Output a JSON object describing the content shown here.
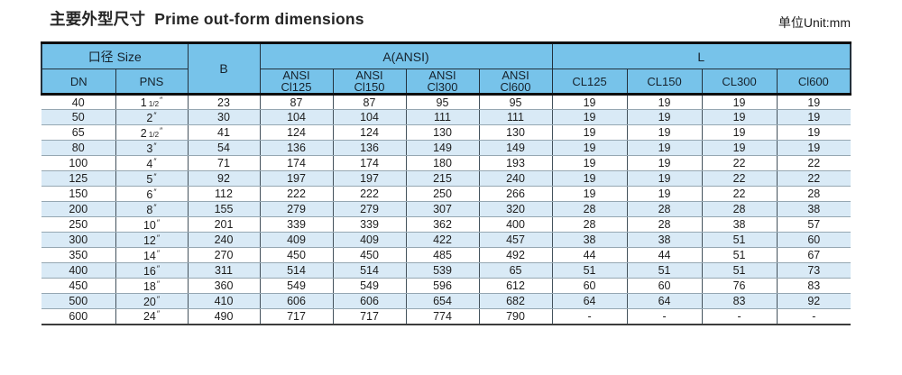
{
  "page": {
    "title_zh": "主要外型尺寸",
    "title_en": "Prime out-form dimensions",
    "unit_label": "单位Unit:mm"
  },
  "table": {
    "inch_mark": "″",
    "header": {
      "size_group": "口径 Size",
      "dn": "DN",
      "pns": "PNS",
      "b": "B",
      "a_group": "A(ANSI)",
      "a_cols": [
        {
          "line1": "ANSI",
          "line2": "Cl125"
        },
        {
          "line1": "ANSI",
          "line2": "Cl150"
        },
        {
          "line1": "ANSI",
          "line2": "Cl300"
        },
        {
          "line1": "ANSI",
          "line2": "Cl600"
        }
      ],
      "l_group": "L",
      "l_cols": [
        "CL125",
        "CL150",
        "CL300",
        "Cl600"
      ]
    },
    "rows": [
      {
        "dn": "40",
        "pns": "1 1/2",
        "b": "23",
        "a": [
          "87",
          "87",
          "95",
          "95"
        ],
        "l": [
          "19",
          "19",
          "19",
          "19"
        ]
      },
      {
        "dn": "50",
        "pns": "2",
        "b": "30",
        "a": [
          "104",
          "104",
          "111",
          "111"
        ],
        "l": [
          "19",
          "19",
          "19",
          "19"
        ]
      },
      {
        "dn": "65",
        "pns": "2 1/2",
        "b": "41",
        "a": [
          "124",
          "124",
          "130",
          "130"
        ],
        "l": [
          "19",
          "19",
          "19",
          "19"
        ]
      },
      {
        "dn": "80",
        "pns": "3",
        "b": "54",
        "a": [
          "136",
          "136",
          "149",
          "149"
        ],
        "l": [
          "19",
          "19",
          "19",
          "19"
        ]
      },
      {
        "dn": "100",
        "pns": "4",
        "b": "71",
        "a": [
          "174",
          "174",
          "180",
          "193"
        ],
        "l": [
          "19",
          "19",
          "22",
          "22"
        ]
      },
      {
        "dn": "125",
        "pns": "5",
        "b": "92",
        "a": [
          "197",
          "197",
          "215",
          "240"
        ],
        "l": [
          "19",
          "19",
          "22",
          "22"
        ]
      },
      {
        "dn": "150",
        "pns": "6",
        "b": "112",
        "a": [
          "222",
          "222",
          "250",
          "266"
        ],
        "l": [
          "19",
          "19",
          "22",
          "28"
        ]
      },
      {
        "dn": "200",
        "pns": "8",
        "b": "155",
        "a": [
          "279",
          "279",
          "307",
          "320"
        ],
        "l": [
          "28",
          "28",
          "28",
          "38"
        ]
      },
      {
        "dn": "250",
        "pns": "10",
        "b": "201",
        "a": [
          "339",
          "339",
          "362",
          "400"
        ],
        "l": [
          "28",
          "28",
          "38",
          "57"
        ]
      },
      {
        "dn": "300",
        "pns": "12",
        "b": "240",
        "a": [
          "409",
          "409",
          "422",
          "457"
        ],
        "l": [
          "38",
          "38",
          "51",
          "60"
        ]
      },
      {
        "dn": "350",
        "pns": "14",
        "b": "270",
        "a": [
          "450",
          "450",
          "485",
          "492"
        ],
        "l": [
          "44",
          "44",
          "51",
          "67"
        ]
      },
      {
        "dn": "400",
        "pns": "16",
        "b": "311",
        "a": [
          "514",
          "514",
          "539",
          "65"
        ],
        "l": [
          "51",
          "51",
          "51",
          "73"
        ]
      },
      {
        "dn": "450",
        "pns": "18",
        "b": "360",
        "a": [
          "549",
          "549",
          "596",
          "612"
        ],
        "l": [
          "60",
          "60",
          "76",
          "83"
        ]
      },
      {
        "dn": "500",
        "pns": "20",
        "b": "410",
        "a": [
          "606",
          "606",
          "654",
          "682"
        ],
        "l": [
          "64",
          "64",
          "83",
          "92"
        ]
      },
      {
        "dn": "600",
        "pns": "24",
        "b": "490",
        "a": [
          "717",
          "717",
          "774",
          "790"
        ],
        "l": [
          "-",
          "-",
          "-",
          "-"
        ]
      }
    ]
  },
  "colors": {
    "header_bg": "#77C3EA",
    "stripe_bg": "#D9EAF6",
    "heavy_border": "#0F0F0F",
    "grid_vertical": "#44525C",
    "grid_horizontal": "#95A7B2",
    "header_grid": "#22313D",
    "text": "#1E1E1E"
  }
}
